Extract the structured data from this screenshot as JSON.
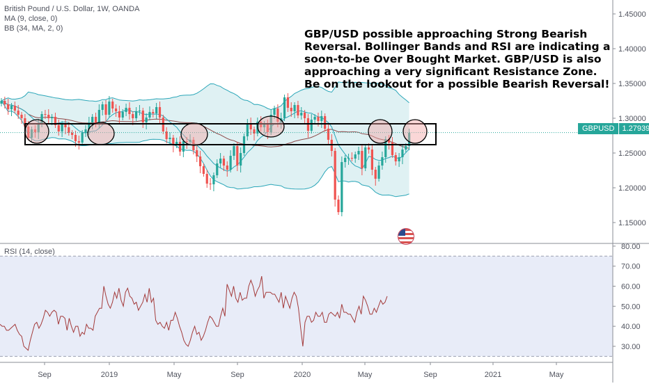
{
  "header": {
    "symbol_line": "British Pound / U.S. Dollar, 1W, OANDA",
    "ma_line": "MA (9, close, 0)",
    "bb_line": "BB (34, MA, 2, 0)"
  },
  "annotation": {
    "text": "GBP/USD possible approaching Strong Bearish Reversal. Bollinger Bands and RSI are indicating a soon-to-be Over Bought Market. GBP/USD is also approaching a very significant Resistance Zone. Be on the lookout for a possible Bearish Reversal!"
  },
  "price_tag": {
    "symbol": "GBPUSD",
    "value": "1.27939"
  },
  "rsi_pane": {
    "label": "RSI (14, close)"
  },
  "colors": {
    "up": "#26a69a",
    "down": "#ef5350",
    "bb": "#2aa6b8",
    "ma": "#8d4a4a",
    "rsi": "#a33a3a",
    "band_fill": "#dff1f3",
    "rsi_fill": "#e8ecf8",
    "circle_fill": "#f3a6a6"
  },
  "chart_data": [
    {
      "type": "candlestick",
      "title": "British Pound / U.S. Dollar, 1W, OANDA",
      "y_axis": {
        "ylim": [
          1.12,
          1.47
        ],
        "ticks": [
          "1.15000",
          "1.20000",
          "1.25000",
          "1.30000",
          "1.35000",
          "1.40000",
          "1.45000"
        ],
        "side": "right"
      },
      "x_axis": {
        "ticks": [
          "Sep",
          "2019",
          "May",
          "Sep",
          "2020",
          "May",
          "Sep",
          "2021",
          "May"
        ]
      },
      "last_price": 1.27939,
      "resistance_zone": {
        "from": 1.262,
        "to": 1.292
      },
      "closes": [
        1.325,
        1.32,
        1.313,
        1.318,
        1.311,
        1.305,
        1.3,
        1.288,
        1.272,
        1.284,
        1.28,
        1.291,
        1.306,
        1.305,
        1.3,
        1.302,
        1.29,
        1.281,
        1.292,
        1.287,
        1.279,
        1.276,
        1.267,
        1.265,
        1.279,
        1.284,
        1.294,
        1.302,
        1.291,
        1.312,
        1.32,
        1.305,
        1.324,
        1.314,
        1.31,
        1.301,
        1.309,
        1.315,
        1.306,
        1.3,
        1.31,
        1.311,
        1.294,
        1.301,
        1.309,
        1.307,
        1.316,
        1.301,
        1.281,
        1.27,
        1.272,
        1.261,
        1.266,
        1.252,
        1.267,
        1.266,
        1.269,
        1.254,
        1.245,
        1.231,
        1.22,
        1.206,
        1.205,
        1.218,
        1.235,
        1.242,
        1.232,
        1.226,
        1.246,
        1.26,
        1.232,
        1.25,
        1.274,
        1.293,
        1.284,
        1.278,
        1.295,
        1.287,
        1.292,
        1.28,
        1.305,
        1.314,
        1.295,
        1.3,
        1.33,
        1.315,
        1.31,
        1.319,
        1.304,
        1.308,
        1.3,
        1.282,
        1.298,
        1.302,
        1.296,
        1.303,
        1.285,
        1.269,
        1.253,
        1.183,
        1.165,
        1.237,
        1.243,
        1.243,
        1.242,
        1.248,
        1.253,
        1.228,
        1.258,
        1.255,
        1.226,
        1.213,
        1.232,
        1.244,
        1.27,
        1.265,
        1.247,
        1.238,
        1.244,
        1.255,
        1.26,
        1.279
      ],
      "rsi": {
        "label": "RSI (14, close)",
        "ylim": [
          22,
          81
        ],
        "bands": [
          25,
          75
        ],
        "ticks": [
          "30.00",
          "40.00",
          "50.00",
          "60.00",
          "70.00",
          "80.00"
        ],
        "values": [
          41,
          40,
          40,
          38,
          38,
          39,
          40,
          41,
          38,
          36,
          35,
          30,
          29,
          28,
          33,
          37,
          41,
          42,
          39,
          41,
          44,
          48,
          47,
          45,
          47,
          48,
          47,
          41,
          45,
          45,
          44,
          38,
          44,
          40,
          37,
          40,
          40,
          35,
          37,
          36,
          41,
          39,
          39,
          38,
          45,
          47,
          49,
          49,
          60,
          55,
          51,
          49,
          52,
          57,
          54,
          59,
          53,
          50,
          57,
          59,
          55,
          54,
          51,
          52,
          48,
          50,
          52,
          56,
          52,
          59,
          52,
          54,
          43,
          41,
          42,
          40,
          39,
          42,
          38,
          43,
          43,
          47,
          44,
          40,
          37,
          33,
          31,
          30,
          33,
          37,
          40,
          36,
          37,
          33,
          35,
          38,
          42,
          45,
          44,
          42,
          40,
          40,
          45,
          49,
          45,
          61,
          58,
          55,
          60,
          54,
          52,
          57,
          53,
          54,
          54,
          60,
          63,
          60,
          55,
          58,
          60,
          65,
          54,
          57,
          57,
          57,
          56,
          56,
          54,
          52,
          57,
          49,
          55,
          52,
          49,
          54,
          57,
          55,
          49,
          39,
          30,
          42,
          45,
          45,
          42,
          43,
          47,
          45,
          45,
          47,
          42,
          42,
          46,
          47,
          46,
          45,
          47,
          44,
          51,
          47,
          47,
          46,
          46,
          44,
          42,
          47,
          50,
          46,
          55,
          53,
          50,
          46,
          46,
          49,
          47,
          50,
          53,
          51,
          52,
          55
        ]
      }
    }
  ]
}
